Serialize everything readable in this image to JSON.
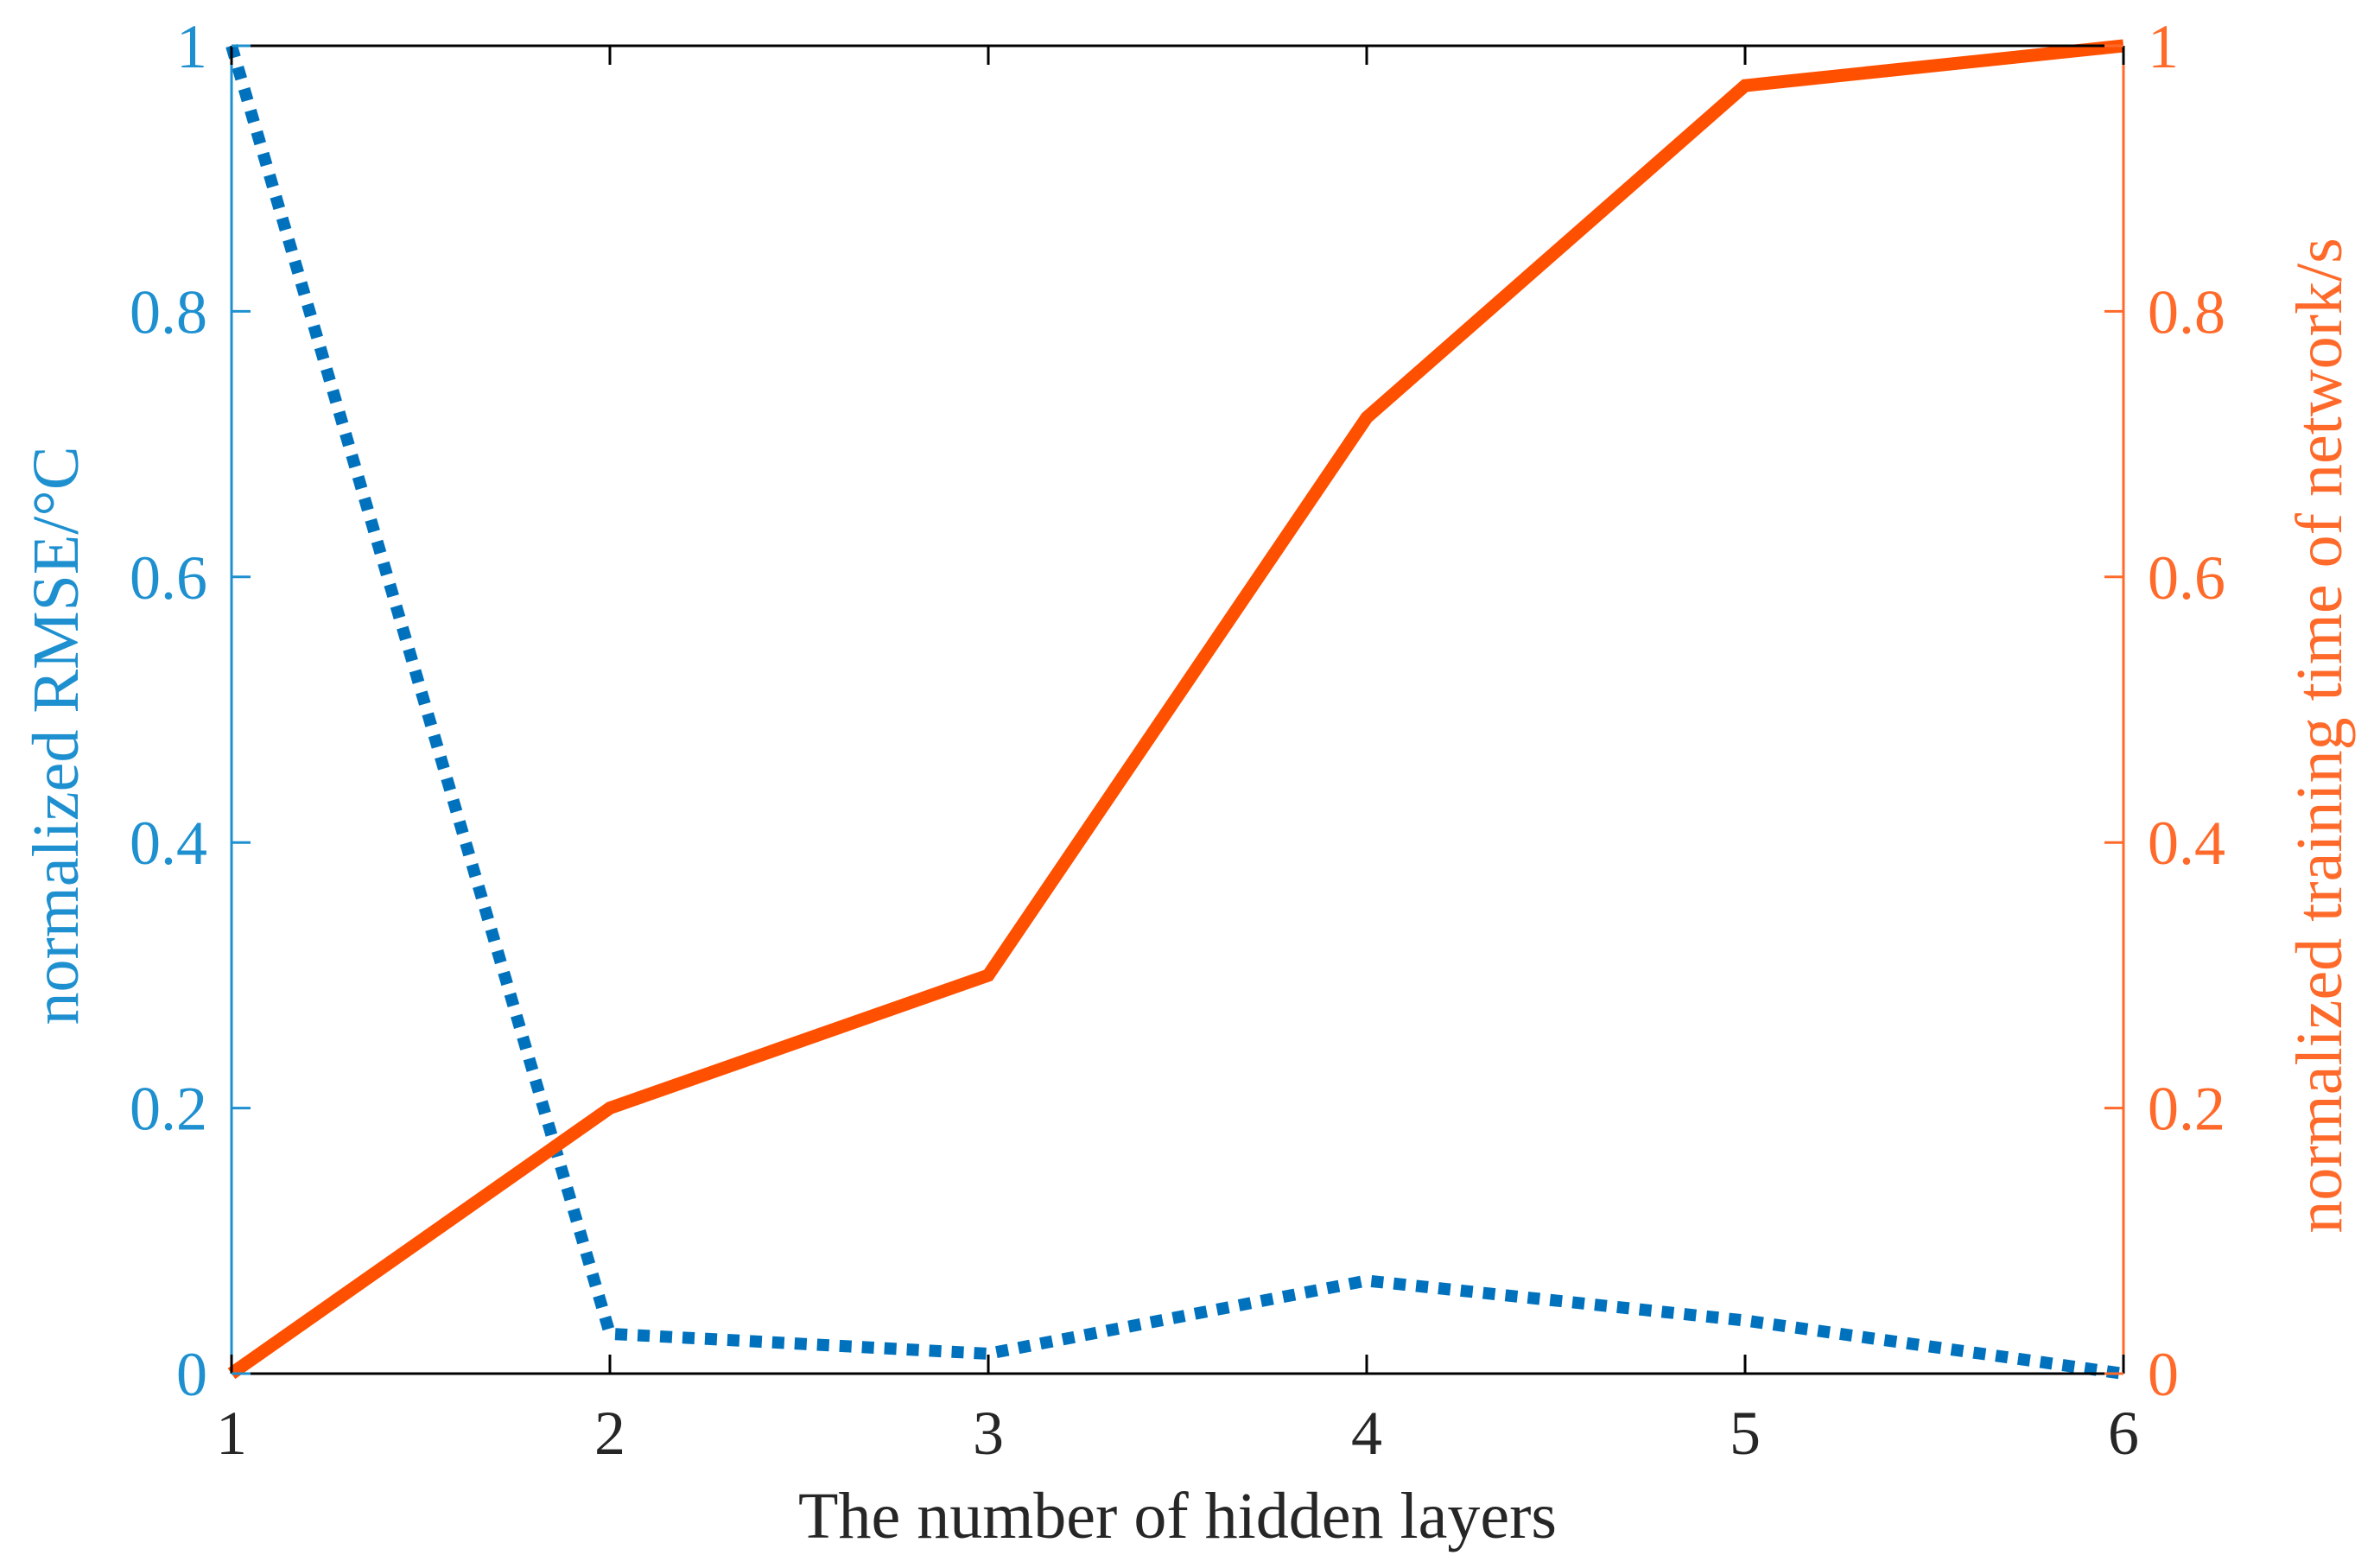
{
  "chart_data": {
    "type": "line",
    "title": "",
    "xlabel": "The number of hidden layers",
    "ylabel_left": "normalized RMSE/°C",
    "ylabel_right": "normalized training time of network/s",
    "x": [
      1,
      2,
      3,
      4,
      5,
      6
    ],
    "xlim": [
      1,
      6
    ],
    "xticks": [
      "1",
      "2",
      "3",
      "4",
      "5",
      "6"
    ],
    "ylim_left": [
      0,
      1
    ],
    "ylim_right": [
      0,
      1
    ],
    "yticks_left": [
      "0",
      "0.2",
      "0.4",
      "0.6",
      "0.8",
      "1"
    ],
    "yticks_right": [
      "0",
      "0.2",
      "0.4",
      "0.6",
      "0.8",
      "1"
    ],
    "grid": false,
    "legend": "none",
    "series": [
      {
        "axis": "left",
        "style": "dotted",
        "color": "#0072BD",
        "values": [
          1.0,
          0.03,
          0.015,
          0.07,
          0.04,
          0.0
        ]
      },
      {
        "axis": "right",
        "style": "solid",
        "color": "#FF5000",
        "values": [
          0.0,
          0.2,
          0.3,
          0.72,
          0.97,
          1.0
        ]
      }
    ],
    "colors": {
      "left_axis": "#1E90D0",
      "right_axis": "#FF6A2A",
      "frame": "#000000"
    }
  }
}
